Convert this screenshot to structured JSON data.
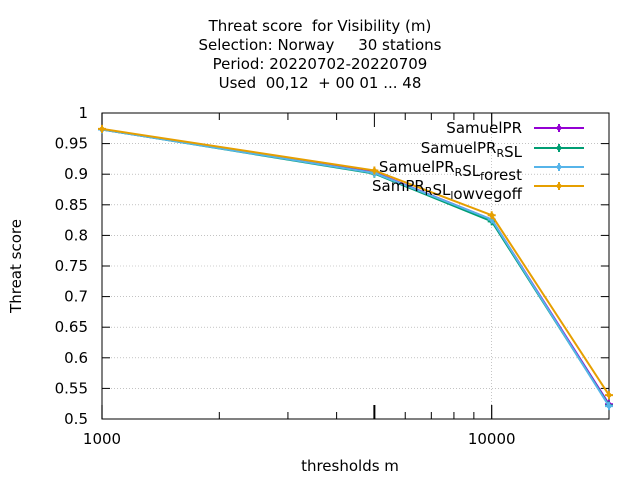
{
  "chart_data": {
    "type": "line",
    "title_lines": [
      "Threat score  for Visibility (m)",
      "Selection: Norway     30 stations",
      "Period: 20220702-20220709",
      "Used  00,12  + 00 01 ... 48"
    ],
    "xlabel": "thresholds m",
    "ylabel": "Threat score",
    "x_scale": "log",
    "xlim": [
      1000,
      20000
    ],
    "ylim": [
      0.5,
      1.0
    ],
    "x_ticks": [
      1000,
      10000
    ],
    "x_tick_labels": [
      "1000",
      "10000"
    ],
    "y_ticks": [
      0.5,
      0.55,
      0.6,
      0.65,
      0.7,
      0.75,
      0.8,
      0.85,
      0.9,
      0.95,
      1.0
    ],
    "y_tick_labels": [
      "0.5",
      "0.55",
      "0.6",
      "0.65",
      "0.7",
      "0.75",
      "0.8",
      "0.85",
      "0.9",
      "0.95",
      "1"
    ],
    "grid": true,
    "legend_position": "top-right",
    "x": [
      1000,
      5000,
      10000,
      20000
    ],
    "series": [
      {
        "name": "SamuelPR",
        "name_parts": [
          [
            "SamuelPR",
            ""
          ]
        ],
        "color": "#9400d3",
        "values": [
          0.973,
          0.903,
          0.826,
          0.524
        ]
      },
      {
        "name": "SamuelPR_RSL",
        "name_parts": [
          [
            "SamuelPR",
            ""
          ],
          [
            "R",
            "sub"
          ],
          [
            "SL",
            ""
          ]
        ],
        "color": "#009e73",
        "values": [
          0.973,
          0.901,
          0.823,
          0.522
        ]
      },
      {
        "name": "SamuelPR_RSL_forest",
        "name_parts": [
          [
            "SamuelPR",
            ""
          ],
          [
            "R",
            "sub"
          ],
          [
            "SL",
            ""
          ],
          [
            "f",
            "sub"
          ],
          [
            "orest",
            ""
          ]
        ],
        "color": "#56b4e9",
        "values": [
          0.973,
          0.902,
          0.826,
          0.521
        ]
      },
      {
        "name": "SamPR_RSL_lowvegoff",
        "name_parts": [
          [
            "SamPR",
            ""
          ],
          [
            "R",
            "sub"
          ],
          [
            "SL",
            ""
          ],
          [
            "l",
            "sub"
          ],
          [
            "owvegoff",
            ""
          ]
        ],
        "color": "#e69f00",
        "values": [
          0.974,
          0.906,
          0.833,
          0.539
        ]
      }
    ]
  }
}
